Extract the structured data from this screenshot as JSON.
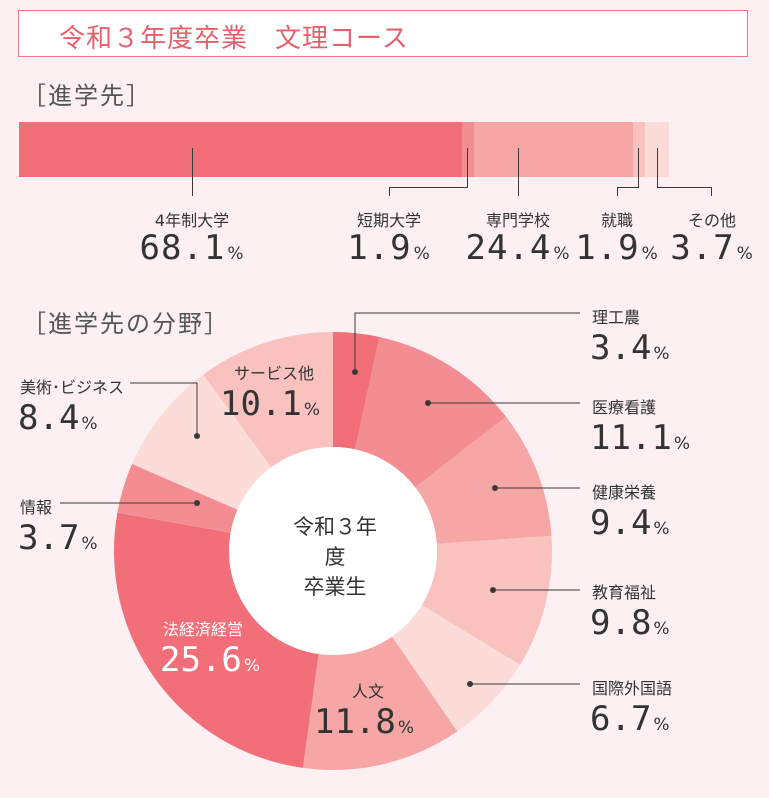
{
  "title": "令和３年度卒業　文理コース",
  "unit": "%",
  "chart_data": [
    {
      "type": "bar",
      "title": "［進学先］",
      "categories": [
        "4年制大学",
        "短期大学",
        "専門学校",
        "就職",
        "その他"
      ],
      "values": [
        68.1,
        1.9,
        24.4,
        1.9,
        3.7
      ],
      "value_labels": [
        "68.1",
        "1.9",
        "24.4",
        "1.9",
        "3.7"
      ],
      "colors": [
        "#f26e78",
        "#f48d91",
        "#f7a6a6",
        "#f9c2be",
        "#fcdcd8"
      ]
    },
    {
      "type": "pie",
      "title": "［進学先の分野］",
      "center_label": [
        "令和３年度",
        "卒業生"
      ],
      "categories": [
        "理工農",
        "医療看護",
        "健康栄養",
        "教育福祉",
        "国際外国語",
        "人文",
        "法経済経営",
        "情報",
        "美術･ビジネス",
        "サービス他"
      ],
      "values": [
        3.4,
        11.1,
        9.4,
        9.8,
        6.7,
        11.8,
        25.6,
        3.7,
        8.4,
        10.1
      ],
      "value_labels": [
        "3.4",
        "11.1",
        "9.4",
        "9.8",
        "6.7",
        "11.8",
        "25.6",
        "3.7",
        "8.4",
        "10.1"
      ],
      "colors": [
        "#f26e78",
        "#f48d91",
        "#f7a6a6",
        "#f9c2be",
        "#fcdcd8",
        "#f7a6a6",
        "#f26e78",
        "#f48d91",
        "#fcdcd8",
        "#f9c2be"
      ]
    }
  ]
}
